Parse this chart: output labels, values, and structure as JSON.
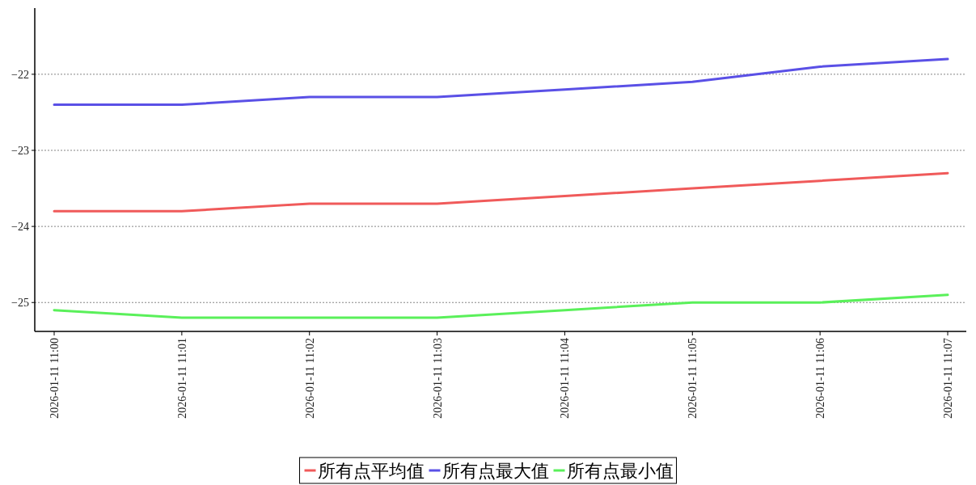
{
  "chart_data": {
    "type": "line",
    "categories": [
      "2026-01-11 11:00",
      "2026-01-11 11:01",
      "2026-01-11 11:02",
      "2026-01-11 11:03",
      "2026-01-11 11:04",
      "2026-01-11 11:05",
      "2026-01-11 11:06",
      "2026-01-11 11:07"
    ],
    "series": [
      {
        "name": "所有点平均值",
        "color": "#f05a5a",
        "values": [
          -23.8,
          -23.8,
          -23.7,
          -23.7,
          -23.6,
          -23.5,
          -23.4,
          -23.3
        ]
      },
      {
        "name": "所有点最大值",
        "color": "#5a50e6",
        "values": [
          -22.4,
          -22.4,
          -22.3,
          -22.3,
          -22.2,
          -22.1,
          -21.9,
          -21.8
        ]
      },
      {
        "name": "所有点最小值",
        "color": "#5af05a",
        "values": [
          -25.1,
          -25.2,
          -25.2,
          -25.2,
          -25.1,
          -25.0,
          -25.0,
          -24.9
        ]
      }
    ],
    "ylim": [
      -25.38,
      -21.13
    ],
    "yticks": [
      {
        "value": -25,
        "label": "−25"
      },
      {
        "value": -24,
        "label": "−24"
      },
      {
        "value": -23,
        "label": "−23"
      },
      {
        "value": -22,
        "label": "−22"
      }
    ],
    "grid": "y",
    "legend": "bottom",
    "marker": "none",
    "line_style": "solid"
  }
}
